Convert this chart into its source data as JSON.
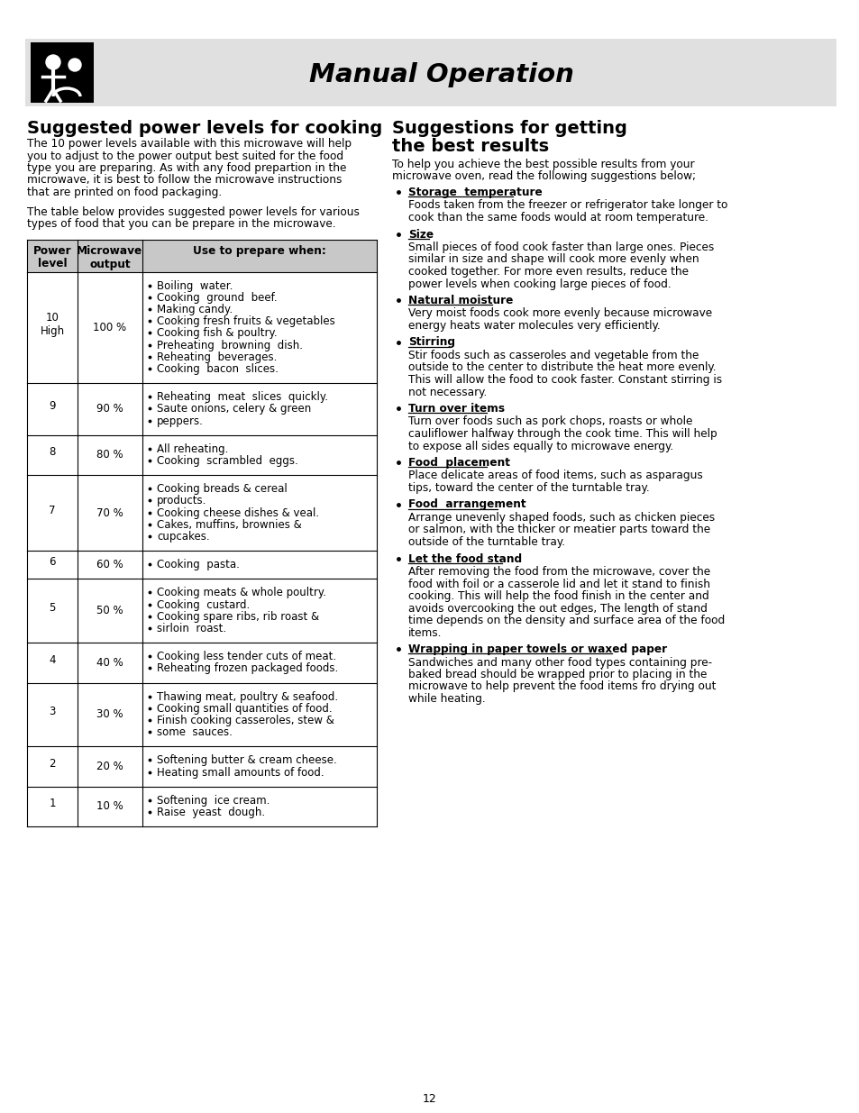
{
  "title": "Manual Operation",
  "header_bg": "#e0e0e0",
  "page_bg": "#ffffff",
  "left_title": "Suggested power levels for cooking",
  "left_intro1_lines": [
    "The 10 power levels available with this microwave will help",
    "you to adjust to the power output best suited for the food",
    "type you are preparing. As with any food prepartion in the",
    "microwave, it is best to follow the microwave instructions",
    "that are printed on food packaging."
  ],
  "left_intro2_lines": [
    "The table below provides suggested power levels for various",
    "types of food that you can be prepare in the microwave."
  ],
  "table_col1_header": "Power\nlevel",
  "table_col2_header": "Microwave\noutput",
  "table_col3_header": "Use to prepare when:",
  "table_rows": [
    {
      "level": "10\nHigh",
      "output": "100 %",
      "items": [
        "Boiling  water.",
        "Cooking  ground  beef.",
        "Making candy.",
        "Cooking fresh fruits & vegetables",
        "Cooking fish & poultry.",
        "Preheating  browning  dish.",
        "Reheating  beverages.",
        "Cooking  bacon  slices."
      ]
    },
    {
      "level": "9",
      "output": "90 %",
      "items": [
        "Reheating  meat  slices  quickly.",
        "Saute onions, celery & green",
        "peppers."
      ]
    },
    {
      "level": "8",
      "output": "80 %",
      "items": [
        "All reheating.",
        "Cooking  scrambled  eggs."
      ]
    },
    {
      "level": "7",
      "output": "70 %",
      "items": [
        "Cooking breads & cereal",
        "products.",
        "Cooking cheese dishes & veal.",
        "Cakes, muffins, brownies &",
        "cupcakes."
      ]
    },
    {
      "level": "6",
      "output": "60 %",
      "items": [
        "Cooking  pasta."
      ]
    },
    {
      "level": "5",
      "output": "50 %",
      "items": [
        "Cooking meats & whole poultry.",
        "Cooking  custard.",
        "Cooking spare ribs, rib roast &",
        "sirloin  roast."
      ]
    },
    {
      "level": "4",
      "output": "40 %",
      "items": [
        "Cooking less tender cuts of meat.",
        "Reheating frozen packaged foods."
      ]
    },
    {
      "level": "3",
      "output": "30 %",
      "items": [
        "Thawing meat, poultry & seafood.",
        "Cooking small quantities of food.",
        "Finish cooking casseroles, stew &",
        "some  sauces."
      ]
    },
    {
      "level": "2",
      "output": "20 %",
      "items": [
        "Softening butter & cream cheese.",
        "Heating small amounts of food."
      ]
    },
    {
      "level": "1",
      "output": "10 %",
      "items": [
        "Softening  ice cream.",
        "Raise  yeast  dough."
      ]
    }
  ],
  "right_title_line1": "Suggestions for getting",
  "right_title_line2": "the best results",
  "right_intro_lines": [
    "To help you achieve the best possible results from your",
    "microwave oven, read the following suggestions below;"
  ],
  "suggestions": [
    {
      "heading": "Storage  temperature",
      "body_lines": [
        "Foods taken from the freezer or refrigerator take longer to",
        "cook than the same foods would at room temperature."
      ]
    },
    {
      "heading": "Size",
      "body_lines": [
        "Small pieces of food cook faster than large ones. Pieces",
        "similar in size and shape will cook more evenly when",
        "cooked together. For more even results, reduce the",
        "power levels when cooking large pieces of food."
      ]
    },
    {
      "heading": "Natural moisture",
      "body_lines": [
        "Very moist foods cook more evenly because microwave",
        "energy heats water molecules very efficiently."
      ]
    },
    {
      "heading": "Stirring",
      "body_lines": [
        "Stir foods such as casseroles and vegetable from the",
        "outside to the center to distribute the heat more evenly.",
        "This will allow the food to cook faster. Constant stirring is",
        "not necessary."
      ]
    },
    {
      "heading": "Turn over items",
      "body_lines": [
        "Turn over foods such as pork chops, roasts or whole",
        "cauliflower halfway through the cook time. This will help",
        "to expose all sides equally to microwave energy."
      ]
    },
    {
      "heading": "Food  placement",
      "body_lines": [
        "Place delicate areas of food items, such as asparagus",
        "tips, toward the center of the turntable tray."
      ]
    },
    {
      "heading": "Food  arrangement",
      "body_lines": [
        "Arrange unevenly shaped foods, such as chicken pieces",
        "or salmon, with the thicker or meatier parts toward the",
        "outside of the turntable tray."
      ]
    },
    {
      "heading": "Let the food stand",
      "body_lines": [
        "After removing the food from the microwave, cover the",
        "food with foil or a casserole lid and let it stand to finish",
        "cooking. This will help the food finish in the center and",
        "avoids overcooking the out edges, The length of stand",
        "time depends on the density and surface area of the food",
        "items."
      ]
    },
    {
      "heading": "Wrapping in paper towels or waxed paper",
      "body_lines": [
        "Sandwiches and many other food types containing pre-",
        "baked bread should be wrapped prior to placing in the",
        "microwave to help prevent the food items fro drying out",
        "while heating."
      ]
    }
  ],
  "page_number": "12"
}
